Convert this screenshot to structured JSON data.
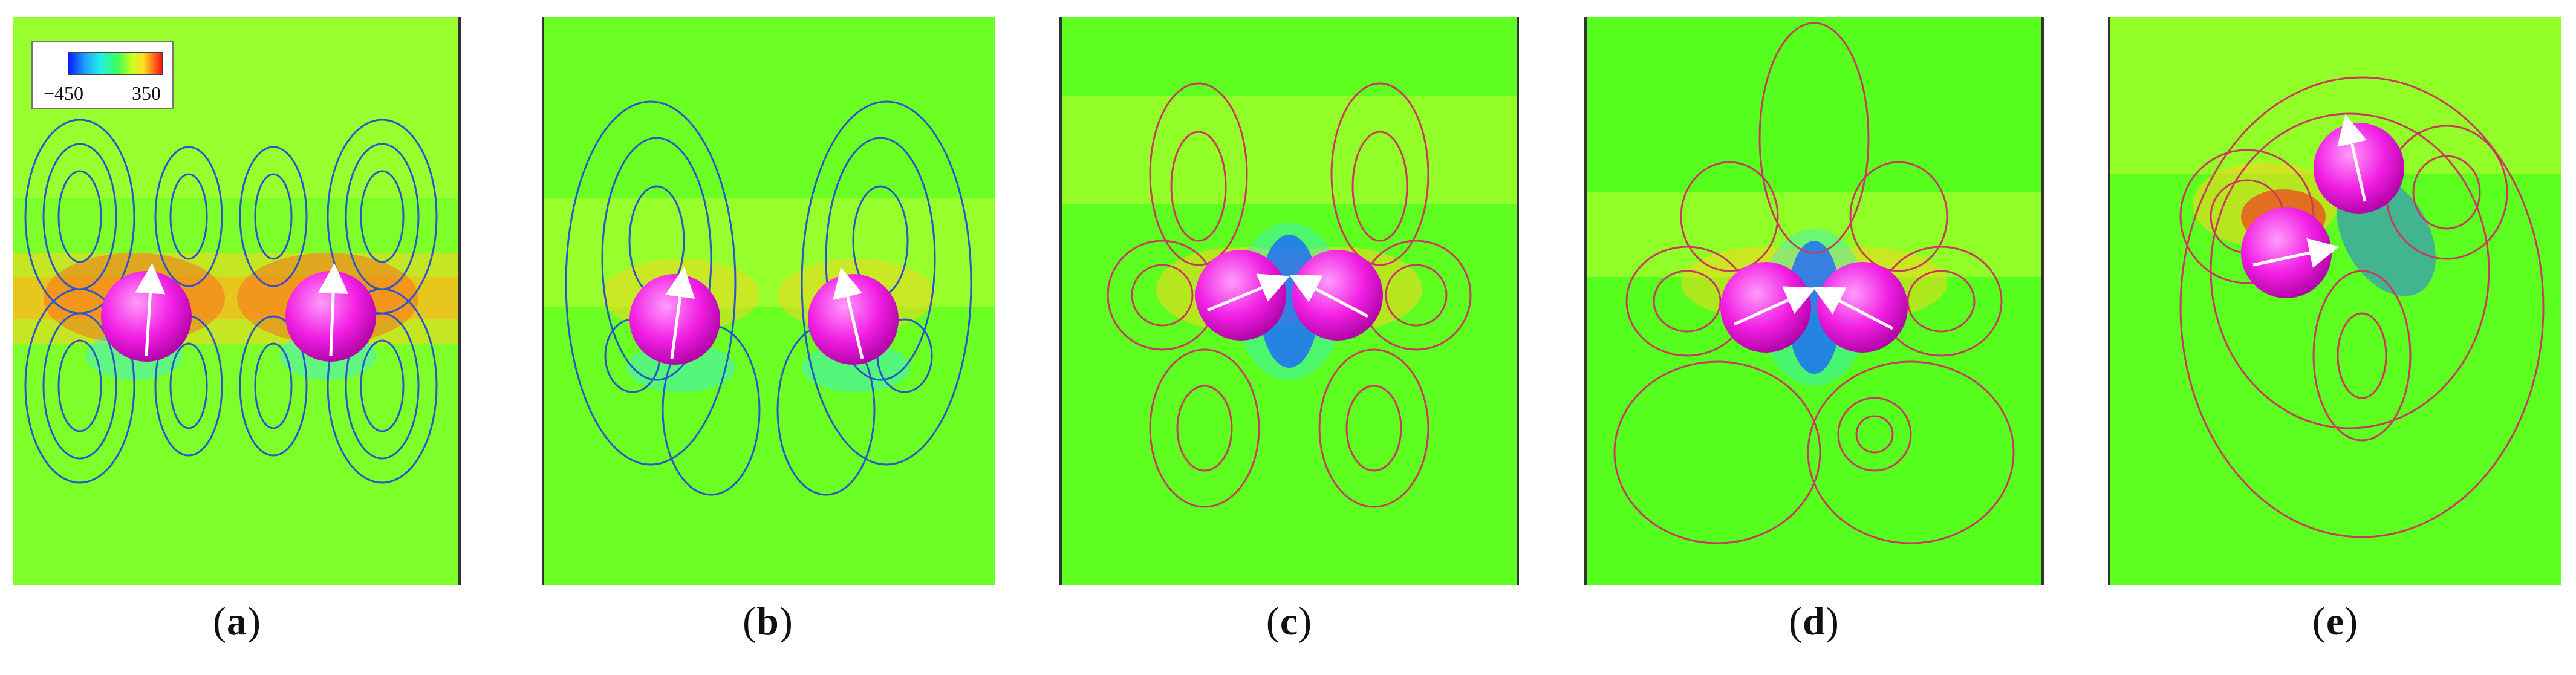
{
  "colorbar": {
    "min_label": "−450",
    "max_label": "350"
  },
  "panels": [
    {
      "letter": "a"
    },
    {
      "letter": "b"
    },
    {
      "letter": "c"
    },
    {
      "letter": "d"
    },
    {
      "letter": "e"
    }
  ],
  "colors": {
    "background_field": "#5fff1e",
    "particle": "#ff3ef2",
    "streamline_blue": "#2a56c9",
    "streamline_red": "#d8334a",
    "arrow": "#ffffff"
  }
}
